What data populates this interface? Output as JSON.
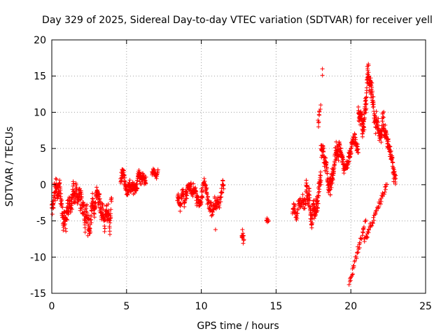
{
  "chart_data": {
    "type": "scatter",
    "title": "Day 329 of 2025, Sidereal Day-to-day VTEC variation (SDTVAR) for receiver yell",
    "xlabel": "GPS time / hours",
    "ylabel": "SDTVAR / TECUs",
    "xlim": [
      0,
      25
    ],
    "ylim": [
      -15,
      20
    ],
    "x_ticks": [
      "0",
      "5",
      "10",
      "15",
      "20",
      "25"
    ],
    "y_ticks": [
      "20",
      "15",
      "10",
      "5",
      "0",
      "-5",
      "-10",
      "-15"
    ],
    "marker": "plus",
    "series_color": "#ff0000",
    "grid": true,
    "segments": [
      {
        "t0": 0.0,
        "t1": 4.0,
        "base": -3.0,
        "amp": 2.2,
        "noise": 1.6,
        "n": 420
      },
      {
        "t0": 4.6,
        "t1": 6.3,
        "base": 0.2,
        "amp": 1.2,
        "noise": 1.0,
        "n": 160
      },
      {
        "t0": 6.7,
        "t1": 7.1,
        "base": 1.5,
        "amp": 0.5,
        "noise": 0.5,
        "n": 30
      },
      {
        "t0": 8.4,
        "t1": 10.0,
        "base": -1.5,
        "amp": 1.5,
        "noise": 1.0,
        "n": 140
      },
      {
        "t0": 10.0,
        "t1": 11.5,
        "base": -2.0,
        "amp": 1.5,
        "noise": 1.2,
        "n": 110
      },
      {
        "t0": 12.7,
        "t1": 12.85,
        "base": -7.0,
        "amp": 0.5,
        "noise": 0.6,
        "n": 10
      },
      {
        "t0": 14.35,
        "t1": 14.5,
        "base": -5.0,
        "amp": 0.4,
        "noise": 0.4,
        "n": 8
      },
      {
        "t0": 16.1,
        "t1": 17.0,
        "base": -2.5,
        "amp": 1.2,
        "noise": 1.0,
        "n": 60
      },
      {
        "t0": 17.0,
        "t1": 18.0,
        "base": -1.0,
        "amp": 3.0,
        "noise": 1.5,
        "n": 120
      },
      {
        "t0": 18.0,
        "t1": 19.2,
        "base": 2.5,
        "amp": 3.0,
        "noise": 1.3,
        "n": 140
      },
      {
        "t0": 19.2,
        "t1": 20.5,
        "base": 4.0,
        "amp": 3.0,
        "noise": 1.0,
        "n": 120
      },
      {
        "t0": 20.5,
        "t1": 21.2,
        "base": 13.0,
        "amp": 6.0,
        "noise": 1.5,
        "n": 100
      },
      {
        "t0": 21.2,
        "t1": 22.2,
        "base": 11.0,
        "amp": 5.0,
        "noise": 1.5,
        "n": 110
      },
      {
        "t0": 22.2,
        "t1": 23.0,
        "base": 4.0,
        "amp": 5.0,
        "noise": 1.2,
        "n": 90
      }
    ],
    "excursions": [
      {
        "t0": 19.9,
        "t1": 21.0,
        "y0": -13.5,
        "y1": -5.0,
        "n": 40
      },
      {
        "t0": 20.9,
        "t1": 22.4,
        "y0": -8.0,
        "y1": 0.0,
        "n": 50
      },
      {
        "t0": 17.8,
        "t1": 17.95,
        "y0": 8.0,
        "y1": 11.0,
        "n": 10
      }
    ],
    "outliers": [
      {
        "x": 18.1,
        "y": 16.0
      },
      {
        "x": 18.1,
        "y": 15.1
      },
      {
        "x": 10.95,
        "y": -6.2
      },
      {
        "x": 12.8,
        "y": -8.1
      },
      {
        "x": 12.75,
        "y": -6.2
      }
    ]
  }
}
